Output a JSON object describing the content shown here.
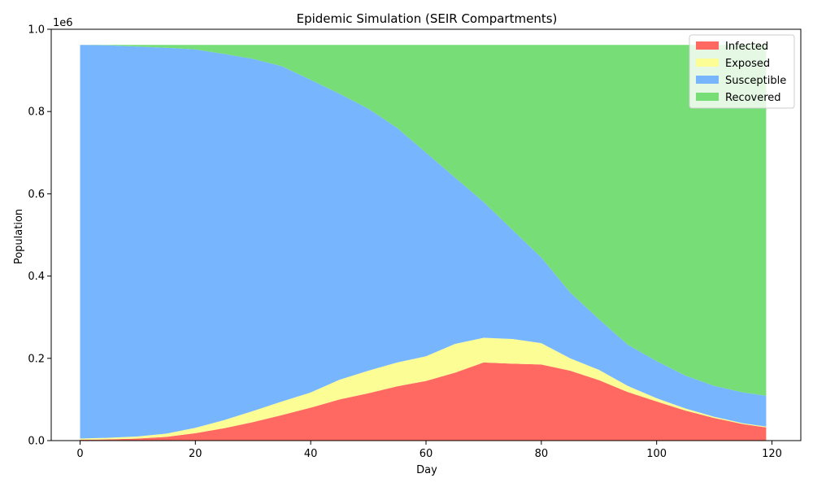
{
  "chart_data": {
    "type": "area",
    "title": "Epidemic Simulation (SEIR Compartments)",
    "xlabel": "Day",
    "ylabel": "Population",
    "y_offset_label": "1e6",
    "xlim": [
      -5,
      125
    ],
    "ylim": [
      0,
      1000000.0
    ],
    "x_ticks": [
      0,
      20,
      40,
      60,
      80,
      100,
      120
    ],
    "x_tick_labels": [
      "0",
      "20",
      "40",
      "60",
      "80",
      "100",
      "120"
    ],
    "y_ticks": [
      0,
      200000,
      400000,
      600000,
      800000,
      1000000
    ],
    "y_tick_labels": [
      "0.0",
      "0.2",
      "0.4",
      "0.6",
      "0.8",
      "1.0"
    ],
    "grid": false,
    "legend_position": "top-right",
    "stacked": true,
    "x": [
      0,
      5,
      10,
      15,
      20,
      25,
      30,
      35,
      40,
      45,
      50,
      55,
      60,
      65,
      70,
      75,
      80,
      85,
      90,
      95,
      100,
      105,
      110,
      115,
      119
    ],
    "series": [
      {
        "name": "Infected",
        "color": "#ff6961",
        "values": [
          2000,
          3000,
          5000,
          9000,
          18000,
          30000,
          45000,
          62000,
          80000,
          100000,
          115000,
          132000,
          145000,
          165000,
          190000,
          187000,
          185000,
          170000,
          147000,
          118000,
          95000,
          73000,
          55000,
          40000,
          32000
        ]
      },
      {
        "name": "Exposed",
        "color": "#fdfd96",
        "values": [
          3000,
          4000,
          5000,
          8000,
          13000,
          20000,
          27000,
          33000,
          37000,
          48000,
          55000,
          58000,
          60000,
          70000,
          60000,
          60000,
          52000,
          30000,
          25000,
          15000,
          8000,
          5000,
          3000,
          2000,
          2000
        ]
      },
      {
        "name": "Susceptible",
        "color": "#77b5fe",
        "values": [
          957000,
          954000,
          948000,
          938000,
          920000,
          890000,
          856000,
          815000,
          760000,
          695000,
          637000,
          570000,
          495000,
          405000,
          330000,
          265000,
          208000,
          160000,
          123000,
          100000,
          90000,
          80000,
          75000,
          75000,
          75000
        ]
      },
      {
        "name": "Recovered",
        "color": "#77dd77",
        "values": [
          0,
          1000,
          4000,
          7000,
          11000,
          22000,
          34000,
          52000,
          85000,
          119000,
          155000,
          202000,
          262000,
          322000,
          382000,
          450000,
          517000,
          602000,
          667000,
          729000,
          769000,
          804000,
          829000,
          845000,
          853000
        ]
      }
    ]
  }
}
